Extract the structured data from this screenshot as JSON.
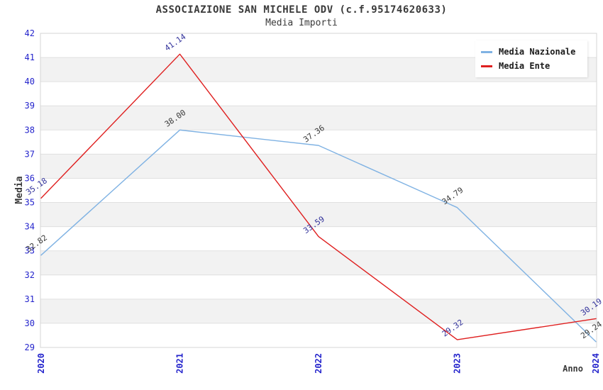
{
  "header": {
    "title": "ASSOCIAZIONE SAN MICHELE ODV (c.f.95174620633)",
    "subtitle": "Media Importi"
  },
  "chart_data": {
    "type": "line",
    "title": "ASSOCIAZIONE SAN MICHELE ODV (c.f.95174620633)",
    "subtitle": "Media Importi",
    "categories": [
      "2020",
      "2021",
      "2022",
      "2023",
      "2024"
    ],
    "xlabel": "Anno",
    "ylabel": "Media",
    "ylim": [
      29,
      42
    ],
    "ytick_step": 1,
    "grid": "horizontal gridlines with alternating shaded bands",
    "legend_position": "top-right",
    "series": [
      {
        "name": "Media Nazionale",
        "color": "#7fb2e3",
        "label_color": "#3a3a3a",
        "values": [
          32.82,
          38.0,
          37.36,
          34.79,
          29.24
        ],
        "labels": [
          "32.82",
          "38.00",
          "37.36",
          "34.79",
          "29.24"
        ]
      },
      {
        "name": "Media Ente",
        "color": "#df1f1f",
        "label_color": "#32329b",
        "values": [
          35.18,
          41.14,
          33.59,
          29.32,
          30.19
        ],
        "labels": [
          "35.18",
          "41.14",
          "33.59",
          "29.32",
          "30.19"
        ]
      }
    ]
  },
  "colors": {
    "tick_label": "#2424cc",
    "band_fill": "#f2f2f2",
    "gridline": "#e0e0e0",
    "plot_border": "#d4d4d4",
    "title_text": "#3a3a3a"
  }
}
